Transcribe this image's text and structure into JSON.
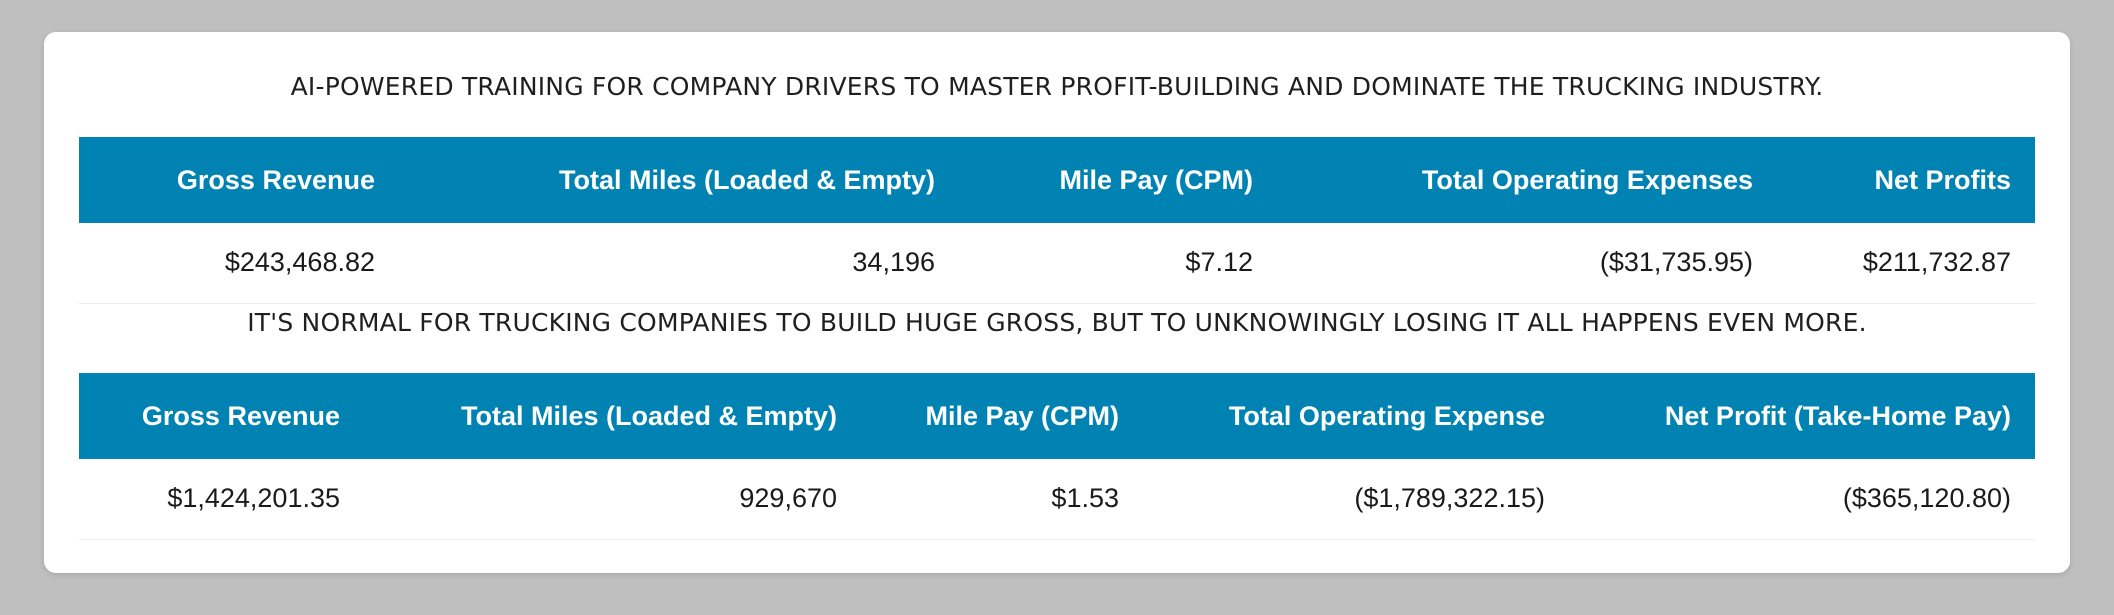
{
  "headlines": {
    "top": "AI-POWERED TRAINING FOR COMPANY DRIVERS TO MASTER PROFIT-BUILDING AND DOMINATE THE TRUCKING INDUSTRY.",
    "middle": "IT'S NORMAL FOR TRUCKING COMPANIES TO BUILD HUGE GROSS, BUT TO UNKNOWINGLY LOSING IT ALL HAPPENS EVEN MORE."
  },
  "table1": {
    "headers": [
      "Gross Revenue",
      "Total Miles (Loaded & Empty)",
      "Mile Pay (CPM)",
      "Total Operating Expenses",
      "Net Profits"
    ],
    "row": [
      "$243,468.82",
      "34,196",
      "$7.12",
      "($31,735.95)",
      "$211,732.87"
    ]
  },
  "table2": {
    "headers": [
      "Gross Revenue",
      "Total Miles (Loaded & Empty)",
      "Mile Pay (CPM)",
      "Total Operating Expense",
      "Net Profit (Take-Home Pay)"
    ],
    "row": [
      "$1,424,201.35",
      "929,670",
      "$1.53",
      "($1,789,322.15)",
      "($365,120.80)"
    ]
  },
  "colors": {
    "header_bg": "#0083b3",
    "page_bg": "#bfbfbf",
    "card_bg": "#ffffff"
  }
}
